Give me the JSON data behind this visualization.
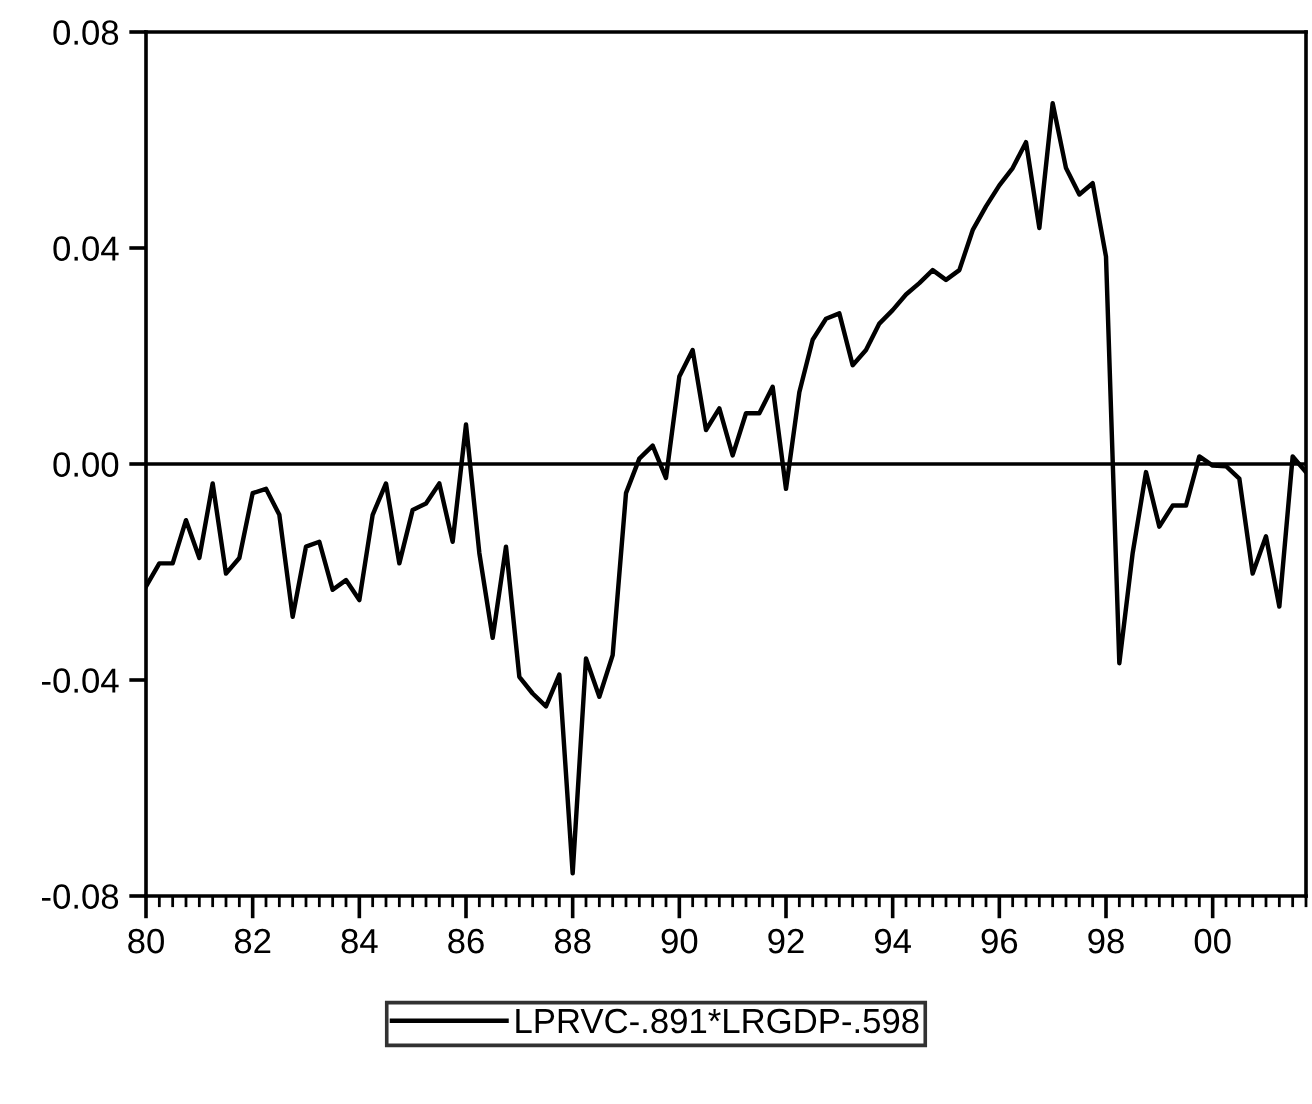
{
  "chart_data": {
    "type": "line",
    "x": [
      1980,
      1980.25,
      1980.5,
      1980.75,
      1981,
      1981.25,
      1981.5,
      1981.75,
      1982,
      1982.25,
      1982.5,
      1982.75,
      1983,
      1983.25,
      1983.5,
      1983.75,
      1984,
      1984.25,
      1984.5,
      1984.75,
      1985,
      1985.25,
      1985.5,
      1985.75,
      1986,
      1986.25,
      1986.5,
      1986.75,
      1987,
      1987.25,
      1987.5,
      1987.75,
      1988,
      1988.25,
      1988.5,
      1988.75,
      1989,
      1989.25,
      1989.5,
      1989.75,
      1990,
      1990.25,
      1990.5,
      1990.75,
      1991,
      1991.25,
      1991.5,
      1991.75,
      1992,
      1992.25,
      1992.5,
      1992.75,
      1993,
      1993.25,
      1993.5,
      1993.75,
      1994,
      1994.25,
      1994.5,
      1994.75,
      1995,
      1995.25,
      1995.5,
      1995.75,
      1996,
      1996.25,
      1996.5,
      1996.75,
      1997,
      1997.25,
      1997.5,
      1997.75,
      1998,
      1998.25,
      1998.5,
      1998.75,
      1999,
      1999.25,
      1999.5,
      1999.75,
      2000,
      2000.25,
      2000.5,
      2000.75,
      2001,
      2001.25,
      2001.5,
      2001.75
    ],
    "series": [
      {
        "name": "LPRVC-.891*LRGDP-.598",
        "color": "#000000",
        "values": [
          -0.0227,
          -0.0184,
          -0.0184,
          -0.0104,
          -0.0174,
          -0.0036,
          -0.0203,
          -0.0174,
          -0.0054,
          -0.0046,
          -0.0094,
          -0.0283,
          -0.0153,
          -0.0144,
          -0.0233,
          -0.0215,
          -0.0252,
          -0.0094,
          -0.0036,
          -0.0184,
          -0.0085,
          -0.0073,
          -0.0036,
          -0.0144,
          0.0073,
          -0.0165,
          -0.0322,
          -0.0153,
          -0.0394,
          -0.0425,
          -0.0449,
          -0.039,
          -0.0758,
          -0.036,
          -0.0431,
          -0.0354,
          -0.0054,
          0.001,
          0.0034,
          -0.0026,
          0.0162,
          0.0211,
          0.0063,
          0.0103,
          0.0016,
          0.0094,
          0.0094,
          0.0143,
          -0.0046,
          0.0133,
          0.023,
          0.0269,
          0.0279,
          0.0183,
          0.0211,
          0.026,
          0.0285,
          0.0314,
          0.0335,
          0.0359,
          0.0341,
          0.0359,
          0.0433,
          0.0477,
          0.0516,
          0.0548,
          0.0596,
          0.0437,
          0.0668,
          0.0548,
          0.0499,
          0.052,
          0.0384,
          -0.0369,
          -0.0165,
          -0.0015,
          -0.0116,
          -0.0077,
          -0.0077,
          0.0014,
          -0.0003,
          -0.0004,
          -0.0027,
          -0.0203,
          -0.0134,
          -0.0264,
          0.0014,
          -0.0015
        ]
      }
    ],
    "xlim": [
      1980,
      2001.75
    ],
    "ylim": [
      -0.08,
      0.08
    ],
    "xticks": [
      {
        "value": 1980,
        "label": "80"
      },
      {
        "value": 1982,
        "label": "82"
      },
      {
        "value": 1984,
        "label": "84"
      },
      {
        "value": 1986,
        "label": "86"
      },
      {
        "value": 1988,
        "label": "88"
      },
      {
        "value": 1990,
        "label": "90"
      },
      {
        "value": 1992,
        "label": "92"
      },
      {
        "value": 1994,
        "label": "94"
      },
      {
        "value": 1996,
        "label": "96"
      },
      {
        "value": 1998,
        "label": "98"
      },
      {
        "value": 2000,
        "label": "00"
      }
    ],
    "yticks": [
      {
        "value": -0.08,
        "label": "-0.08"
      },
      {
        "value": -0.04,
        "label": "-0.04"
      },
      {
        "value": 0,
        "label": "0.00"
      },
      {
        "value": 0.04,
        "label": "0.04"
      },
      {
        "value": 0.08,
        "label": "0.08"
      }
    ],
    "ref_lines": [
      {
        "axis": "y",
        "value": 0,
        "color": "#000000"
      }
    ],
    "grid": false,
    "legend": "bottom",
    "marker": "none",
    "line_style": "solid"
  }
}
